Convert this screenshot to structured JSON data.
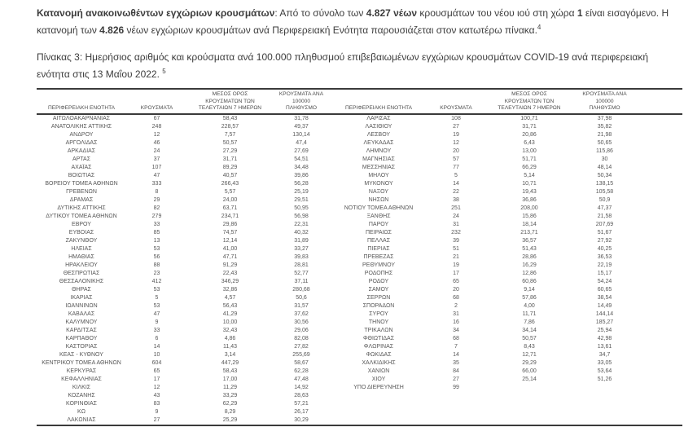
{
  "colors": {
    "text": "#3c3c3c",
    "table_text": "#575757",
    "line": "#3a3a3a"
  },
  "intro": {
    "lines": [
      [
        {
          "t": "Κατανομή ανακοινωθέντων εγχώριων κρουσμάτων",
          "b": true
        },
        {
          "t": ": Από το σύνολο των "
        },
        {
          "t": "4.827 νέων",
          "b": true
        },
        {
          "t": " κρουσμάτων του νέου ιού στη χώρα "
        },
        {
          "t": "1",
          "b": true
        },
        {
          "t": " είναι εισαγόμενο.  Η"
        }
      ],
      [
        {
          "t": "κατανομή των "
        },
        {
          "t": "4.826",
          "b": true
        },
        {
          "t": " νέων εγχώριων κρουσμάτων ανά Περιφερειακή Ενότητα παρουσιάζεται στον κατωτέρω πίνακα."
        },
        {
          "t": "4",
          "sup": true
        }
      ]
    ]
  },
  "caption": {
    "lines": [
      [
        {
          "t": "Πίνακας 3:  Ημερήσιος αριθμός και κρούσματα ανά 100.000 πληθυσμού επιβεβαιωμένων εγχώριων κρουσμάτων COVID-19 ανά περιφερειακή"
        }
      ],
      [
        {
          "t": "ενότητα στις 13 Μαΐου 2022. "
        },
        {
          "t": "5",
          "sup": true
        }
      ]
    ]
  },
  "table": {
    "headers": {
      "region": "ΠΕΡΙΦΕΡΕΙΑΚΗ ΕΝΟΤΗΤΑ",
      "cases": "ΚΡΟΥΣΜΑΤΑ",
      "avg7": "ΜΕΣΟΣ ΟΡΟΣ\nΚΡΟΥΣΜΑΤΩΝ ΤΩΝ\nΤΕΛΕΥΤΑΙΩΝ 7 ΗΜΕΡΩΝ",
      "per100k": "ΚΡΟΥΣΜΑΤΑ ΑΝΑ 100000\nΠΛΗΘΥΣΜΟ",
      "spacer": ""
    },
    "left_rows": [
      [
        "ΑΙΤΩΛΟΑΚΑΡΝΑΝΙΑΣ",
        "67",
        "58,43",
        "31,78"
      ],
      [
        "ΑΝΑΤΟΛΙΚΗΣ ΑΤΤΙΚΗΣ",
        "248",
        "228,57",
        "49,37"
      ],
      [
        "ΑΝΔΡΟΥ",
        "12",
        "7,57",
        "130,14"
      ],
      [
        "ΑΡΓΟΛΙΔΑΣ",
        "46",
        "50,57",
        "47,4"
      ],
      [
        "ΑΡΚΑΔΙΑΣ",
        "24",
        "27,29",
        "27,69"
      ],
      [
        "ΑΡΤΑΣ",
        "37",
        "31,71",
        "54,51"
      ],
      [
        "ΑΧΑΪΑΣ",
        "107",
        "89,29",
        "34,48"
      ],
      [
        "ΒΟΙΩΤΙΑΣ",
        "47",
        "40,57",
        "39,86"
      ],
      [
        "ΒΟΡΕΙΟΥ ΤΟΜΕΑ ΑΘΗΝΩΝ",
        "333",
        "266,43",
        "56,28"
      ],
      [
        "ΓΡΕΒΕΝΩΝ",
        "8",
        "5,57",
        "25,19"
      ],
      [
        "ΔΡΑΜΑΣ",
        "29",
        "24,00",
        "29,51"
      ],
      [
        "ΔΥΤΙΚΗΣ ΑΤΤΙΚΗΣ",
        "82",
        "63,71",
        "50,95"
      ],
      [
        "ΔΥΤΙΚΟΥ ΤΟΜΕΑ ΑΘΗΝΩΝ",
        "279",
        "234,71",
        "56,98"
      ],
      [
        "ΕΒΡΟΥ",
        "33",
        "29,86",
        "22,31"
      ],
      [
        "ΕΥΒΟΙΑΣ",
        "85",
        "74,57",
        "40,32"
      ],
      [
        "ΖΑΚΥΝΘΟΥ",
        "13",
        "12,14",
        "31,89"
      ],
      [
        "ΗΛΕΙΑΣ",
        "53",
        "41,00",
        "33,27"
      ],
      [
        "ΗΜΑΘΙΑΣ",
        "56",
        "47,71",
        "39,83"
      ],
      [
        "ΗΡΑΚΛΕΙΟΥ",
        "88",
        "91,29",
        "28,81"
      ],
      [
        "ΘΕΣΠΡΩΤΙΑΣ",
        "23",
        "22,43",
        "52,77"
      ],
      [
        "ΘΕΣΣΑΛΟΝΙΚΗΣ",
        "412",
        "346,29",
        "37,11"
      ],
      [
        "ΘΗΡΑΣ",
        "53",
        "32,86",
        "280,68"
      ],
      [
        "ΙΚΑΡΙΑΣ",
        "5",
        "4,57",
        "50,6"
      ],
      [
        "ΙΩΑΝΝΙΝΩΝ",
        "53",
        "56,43",
        "31,57"
      ],
      [
        "ΚΑΒΑΛΑΣ",
        "47",
        "41,29",
        "37,62"
      ],
      [
        "ΚΑΛΥΜΝΟΥ",
        "9",
        "10,00",
        "30,56"
      ],
      [
        "ΚΑΡΔΙΤΣΑΣ",
        "33",
        "32,43",
        "29,06"
      ],
      [
        "ΚΑΡΠΑΘΟΥ",
        "6",
        "4,86",
        "82,08"
      ],
      [
        "ΚΑΣΤΟΡΙΑΣ",
        "14",
        "11,43",
        "27,82"
      ],
      [
        "ΚΕΑΣ - ΚΥΘΝΟΥ",
        "10",
        "3,14",
        "255,69"
      ],
      [
        "ΚΕΝΤΡΙΚΟΥ ΤΟΜΕΑ ΑΘΗΝΩΝ",
        "604",
        "447,29",
        "58,67"
      ],
      [
        "ΚΕΡΚΥΡΑΣ",
        "65",
        "58,43",
        "62,28"
      ],
      [
        "ΚΕΦΑΛΛΗΝΙΑΣ",
        "17",
        "17,00",
        "47,48"
      ],
      [
        "ΚΙΛΚΙΣ",
        "12",
        "11,29",
        "14,92"
      ],
      [
        "ΚΟΖΑΝΗΣ",
        "43",
        "33,29",
        "28,63"
      ],
      [
        "ΚΟΡΙΝΘΙΑΣ",
        "83",
        "62,29",
        "57,21"
      ],
      [
        "ΚΩ",
        "9",
        "8,29",
        "26,17"
      ],
      [
        "ΛΑΚΩΝΙΑΣ",
        "27",
        "25,29",
        "30,29"
      ]
    ],
    "right_rows": [
      [
        "ΛΑΡΙΣΑΣ",
        "108",
        "100,71",
        "37,98"
      ],
      [
        "ΛΑΣΙΘΙΟΥ",
        "27",
        "31,71",
        "35,82"
      ],
      [
        "ΛΕΣΒΟΥ",
        "19",
        "20,86",
        "21,98"
      ],
      [
        "ΛΕΥΚΑΔΑΣ",
        "12",
        "6,43",
        "50,65"
      ],
      [
        "ΛΗΜΝΟΥ",
        "20",
        "13,00",
        "115,86"
      ],
      [
        "ΜΑΓΝΗΣΙΑΣ",
        "57",
        "51,71",
        "30"
      ],
      [
        "ΜΕΣΣΗΝΙΑΣ",
        "77",
        "66,29",
        "48,14"
      ],
      [
        "ΜΗΛΟΥ",
        "5",
        "5,14",
        "50,34"
      ],
      [
        "ΜΥΚΟΝΟΥ",
        "14",
        "10,71",
        "138,15"
      ],
      [
        "ΝΑΞΟΥ",
        "22",
        "19,43",
        "105,58"
      ],
      [
        "ΝΗΣΩΝ",
        "38",
        "36,86",
        "50,9"
      ],
      [
        "ΝΟΤΙΟΥ ΤΟΜΕΑ ΑΘΗΝΩΝ",
        "251",
        "208,00",
        "47,37"
      ],
      [
        "ΞΑΝΘΗΣ",
        "24",
        "15,86",
        "21,58"
      ],
      [
        "ΠΑΡΟΥ",
        "31",
        "18,14",
        "207,69"
      ],
      [
        "ΠΕΙΡΑΙΩΣ",
        "232",
        "213,71",
        "51,67"
      ],
      [
        "ΠΕΛΛΑΣ",
        "39",
        "36,57",
        "27,92"
      ],
      [
        "ΠΙΕΡΙΑΣ",
        "51",
        "51,43",
        "40,25"
      ],
      [
        "ΠΡΕΒΕΖΑΣ",
        "21",
        "28,86",
        "36,53"
      ],
      [
        "ΡΕΘΥΜΝΟΥ",
        "19",
        "16,29",
        "22,19"
      ],
      [
        "ΡΟΔΟΠΗΣ",
        "17",
        "12,86",
        "15,17"
      ],
      [
        "ΡΟΔΟΥ",
        "65",
        "60,86",
        "54,24"
      ],
      [
        "ΣΑΜΟΥ",
        "20",
        "9,14",
        "60,65"
      ],
      [
        "ΣΕΡΡΩΝ",
        "68",
        "57,86",
        "38,54"
      ],
      [
        "ΣΠΟΡΑΔΩΝ",
        "2",
        "4,00",
        "14,49"
      ],
      [
        "ΣΥΡΟΥ",
        "31",
        "11,71",
        "144,14"
      ],
      [
        "ΤΗΝΟΥ",
        "16",
        "7,86",
        "185,27"
      ],
      [
        "ΤΡΙΚΑΛΩΝ",
        "34",
        "34,14",
        "25,94"
      ],
      [
        "ΦΘΙΩΤΙΔΑΣ",
        "68",
        "50,57",
        "42,98"
      ],
      [
        "ΦΛΩΡΙΝΑΣ",
        "7",
        "8,43",
        "13,61"
      ],
      [
        "ΦΩΚΙΔΑΣ",
        "14",
        "12,71",
        "34,7"
      ],
      [
        "ΧΑΛΚΙΔΙΚΗΣ",
        "35",
        "29,29",
        "33,05"
      ],
      [
        "ΧΑΝΙΩΝ",
        "84",
        "66,00",
        "53,64"
      ],
      [
        "ΧΙΟΥ",
        "27",
        "25,14",
        "51,26"
      ],
      [
        "ΥΠΟ ΔΙΕΡΕΥΝΗΣΗ",
        "99",
        "",
        ""
      ]
    ]
  }
}
